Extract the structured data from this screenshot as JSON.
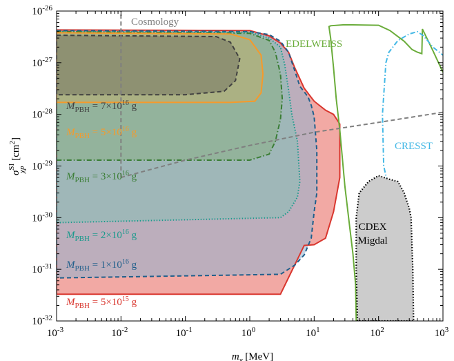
{
  "chart_data": {
    "type": "area",
    "xscale": "log",
    "yscale": "log",
    "xlim": [
      0.001,
      1000
    ],
    "ylim": [
      1e-32,
      1e-26
    ],
    "x_ticks": [
      {
        "value": 0.001,
        "base": "10",
        "exp": "-3"
      },
      {
        "value": 0.01,
        "base": "10",
        "exp": "-2"
      },
      {
        "value": 0.1,
        "base": "10",
        "exp": "-1"
      },
      {
        "value": 1,
        "base": "10",
        "exp": "0"
      },
      {
        "value": 10,
        "base": "10",
        "exp": "1"
      },
      {
        "value": 100,
        "base": "10",
        "exp": "2"
      },
      {
        "value": 1000,
        "base": "10",
        "exp": "3"
      }
    ],
    "y_ticks": [
      {
        "value": 1e-32,
        "base": "10",
        "exp": "-32"
      },
      {
        "value": 1e-31,
        "base": "10",
        "exp": "-31"
      },
      {
        "value": 1e-30,
        "base": "10",
        "exp": "-30"
      },
      {
        "value": 1e-29,
        "base": "10",
        "exp": "-29"
      },
      {
        "value": 1e-28,
        "base": "10",
        "exp": "-28"
      },
      {
        "value": 1e-27,
        "base": "10",
        "exp": "-27"
      },
      {
        "value": 1e-26,
        "base": "10",
        "exp": "-26"
      }
    ],
    "xlabel": {
      "main": "m",
      "sub": "χ",
      "unit": " [MeV]"
    },
    "ylabel": {
      "main": "σ",
      "sup": "SI",
      "sub": "χp",
      "unit": " [cm",
      "unit_sup": "2",
      "unit_end": "]"
    },
    "grid": false,
    "regions": [
      {
        "name": "M_PBH = 5×10^15 g",
        "color": "#d9362e",
        "fill": "#f4b3b0",
        "dash": "solid",
        "label": {
          "main": "M",
          "sub": "PBH",
          "eq": " = 5×10",
          "exp": "15",
          "unit": " g"
        },
        "points": [
          [
            0.001,
            4.3e-27
          ],
          [
            1,
            4.2e-27
          ],
          [
            2,
            3.3e-27
          ],
          [
            3,
            2.4e-27
          ],
          [
            4,
            1.6e-27
          ],
          [
            5,
            8e-28
          ],
          [
            7,
            3.2e-28
          ],
          [
            10,
            1.8e-28
          ],
          [
            15,
            1.2e-28
          ],
          [
            20,
            1e-28
          ],
          [
            25,
            6.5e-29
          ],
          [
            25,
            6e-30
          ],
          [
            20,
            1.3e-30
          ],
          [
            15,
            4e-31
          ],
          [
            10,
            3e-31
          ],
          [
            7,
            2.9e-31
          ],
          [
            3,
            3.3e-32
          ],
          [
            0.001,
            3.3e-32
          ]
        ]
      },
      {
        "name": "M_PBH = 1×10^16 g",
        "color": "#1f5f8b",
        "fill": "none",
        "dash": "dashed",
        "label": {
          "main": "M",
          "sub": "PBH",
          "eq": " = 1×10",
          "exp": "16",
          "unit": " g"
        },
        "points": [
          [
            0.001,
            4.2e-27
          ],
          [
            1,
            4e-27
          ],
          [
            2,
            3.5e-27
          ],
          [
            3,
            2.6e-27
          ],
          [
            4,
            1.6e-27
          ],
          [
            5,
            7e-28
          ],
          [
            6,
            3.5e-28
          ],
          [
            8,
            2.2e-28
          ],
          [
            9,
            1.5e-28
          ],
          [
            10,
            9e-29
          ],
          [
            11,
            2e-29
          ],
          [
            11,
            3e-30
          ],
          [
            10,
            1.3e-30
          ],
          [
            9,
            4e-31
          ],
          [
            7,
            1.9e-31
          ],
          [
            5,
            1.2e-31
          ],
          [
            3,
            8e-32
          ],
          [
            0.001,
            6.8e-32
          ]
        ]
      },
      {
        "name": "M_PBH = 2×10^16 g",
        "color": "#1a9a8c",
        "fill": "none",
        "dash": "dotted",
        "label": {
          "main": "M",
          "sub": "PBH",
          "eq": " = 2×10",
          "exp": "16",
          "unit": " g"
        },
        "points": [
          [
            0.001,
            4e-27
          ],
          [
            1,
            3.9e-27
          ],
          [
            2,
            3e-27
          ],
          [
            3,
            2e-27
          ],
          [
            3.5,
            9e-28
          ],
          [
            4,
            3e-28
          ],
          [
            4.5,
            1e-28
          ],
          [
            5.5,
            3e-29
          ],
          [
            6,
            5e-30
          ],
          [
            5.5,
            2.5e-30
          ],
          [
            4,
            1.3e-30
          ],
          [
            3,
            1e-30
          ],
          [
            0.001,
            8e-31
          ]
        ]
      },
      {
        "name": "M_PBH = 3×10^16 g",
        "color": "#3a7d34",
        "fill": "none",
        "dash": "dashdot",
        "label": {
          "main": "M",
          "sub": "PBH",
          "eq": " = 3×10",
          "exp": "16",
          "unit": " g"
        },
        "points": [
          [
            0.001,
            4e-27
          ],
          [
            1,
            3.7e-27
          ],
          [
            2,
            2.7e-27
          ],
          [
            2.5,
            1.6e-27
          ],
          [
            3,
            6e-28
          ],
          [
            3.2,
            2e-28
          ],
          [
            3,
            8e-29
          ],
          [
            2.5,
            3e-29
          ],
          [
            2,
            1.7e-29
          ],
          [
            1,
            1.3e-29
          ],
          [
            0.001,
            1.3e-29
          ]
        ]
      },
      {
        "name": "M_PBH = 5×10^16 g",
        "color": "#f59a2b",
        "fill": "none",
        "dash": "solid",
        "label": {
          "main": "M",
          "sub": "PBH",
          "eq": " = 5×10",
          "exp": "16",
          "unit": " g"
        },
        "points": [
          [
            0.001,
            3.8e-27
          ],
          [
            0.5,
            3.6e-27
          ],
          [
            1,
            2.8e-27
          ],
          [
            1.5,
            1.4e-27
          ],
          [
            1.6,
            6e-28
          ],
          [
            1.5,
            2.6e-28
          ],
          [
            1.2,
            1.8e-28
          ],
          [
            0.5,
            1.7e-28
          ],
          [
            0.001,
            1.7e-28
          ]
        ]
      },
      {
        "name": "M_PBH = 7×10^16 g",
        "color": "#404040",
        "fill": "none",
        "dash": "dashed",
        "label": {
          "main": "M",
          "sub": "PBH",
          "eq": " = 7×10",
          "exp": "16",
          "unit": " g"
        },
        "points": [
          [
            0.001,
            3.4e-27
          ],
          [
            0.3,
            3.2e-27
          ],
          [
            0.5,
            2.5e-27
          ],
          [
            0.7,
            1.2e-27
          ],
          [
            0.6,
            4.5e-28
          ],
          [
            0.4,
            2.8e-28
          ],
          [
            0.1,
            2.4e-28
          ],
          [
            0.001,
            2.4e-28
          ]
        ]
      }
    ],
    "limits": [
      {
        "name": "EDELWEISS",
        "label": "EDELWEISS",
        "color": "#6aac3a",
        "dash": "solid",
        "points": [
          [
            45,
            1e-32
          ],
          [
            44,
            5e-32
          ],
          [
            40,
            2e-31
          ],
          [
            35,
            8e-31
          ],
          [
            30,
            4e-30
          ],
          [
            25,
            5e-29
          ],
          [
            22,
            2e-28
          ],
          [
            20,
            8e-28
          ],
          [
            18,
            3e-27
          ],
          [
            17,
            5e-27
          ],
          [
            18,
            5.2e-27
          ],
          [
            28,
            5.4e-27
          ],
          [
            40,
            5.4e-27
          ],
          [
            100,
            5.3e-27
          ],
          [
            150,
            4.2e-27
          ],
          [
            250,
            2.6e-27
          ],
          [
            330,
            1.8e-27
          ],
          [
            400,
            1.6e-27
          ],
          [
            470,
            1.5e-27
          ],
          [
            480,
            4.5e-27
          ],
          [
            700,
            1.7e-27
          ],
          [
            1000,
            6.5e-28
          ]
        ]
      },
      {
        "name": "CRESST",
        "label": "CRESST",
        "color": "#43b8e6",
        "dash": "dashdot",
        "points": [
          [
            250,
            1e-32
          ],
          [
            230,
            1e-31
          ],
          [
            190,
            1e-30
          ],
          [
            150,
            3e-30
          ],
          [
            120,
            1e-29
          ],
          [
            115,
            1e-28
          ],
          [
            130,
            1e-27
          ],
          [
            145,
            1.6e-27
          ],
          [
            200,
            2.7e-27
          ],
          [
            300,
            3.6e-27
          ],
          [
            400,
            4e-27
          ],
          [
            500,
            3.3e-27
          ],
          [
            700,
            2e-27
          ],
          [
            1000,
            1.4e-27
          ]
        ]
      },
      {
        "name": "CDEX Migdal",
        "label": "CDEX",
        "label2": "Migdal",
        "color": "#000000",
        "fill": "#cccccc",
        "dash": "dotted",
        "points": [
          [
            47,
            1e-32
          ],
          [
            45,
            1e-31
          ],
          [
            45,
            1e-30
          ],
          [
            50,
            3e-30
          ],
          [
            70,
            5e-30
          ],
          [
            100,
            6.5e-30
          ],
          [
            150,
            5.5e-30
          ],
          [
            200,
            5e-30
          ],
          [
            250,
            3e-30
          ],
          [
            300,
            1.5e-30
          ],
          [
            320,
            1e-30
          ],
          [
            340,
            1e-31
          ],
          [
            350,
            1e-32
          ]
        ]
      },
      {
        "name": "Cosmology",
        "label": "Cosmology",
        "color": "#7f7f7f",
        "dash": "dashed",
        "vertical": {
          "x": 0.01,
          "from": 6e-30,
          "to": 1e-26
        },
        "points": [
          [
            0.01,
            6e-30
          ],
          [
            0.1,
            1.3e-29
          ],
          [
            1,
            2.5e-29
          ],
          [
            10,
            4.5e-29
          ],
          [
            100,
            7e-29
          ],
          [
            1000,
            1.1e-28
          ]
        ]
      }
    ]
  }
}
